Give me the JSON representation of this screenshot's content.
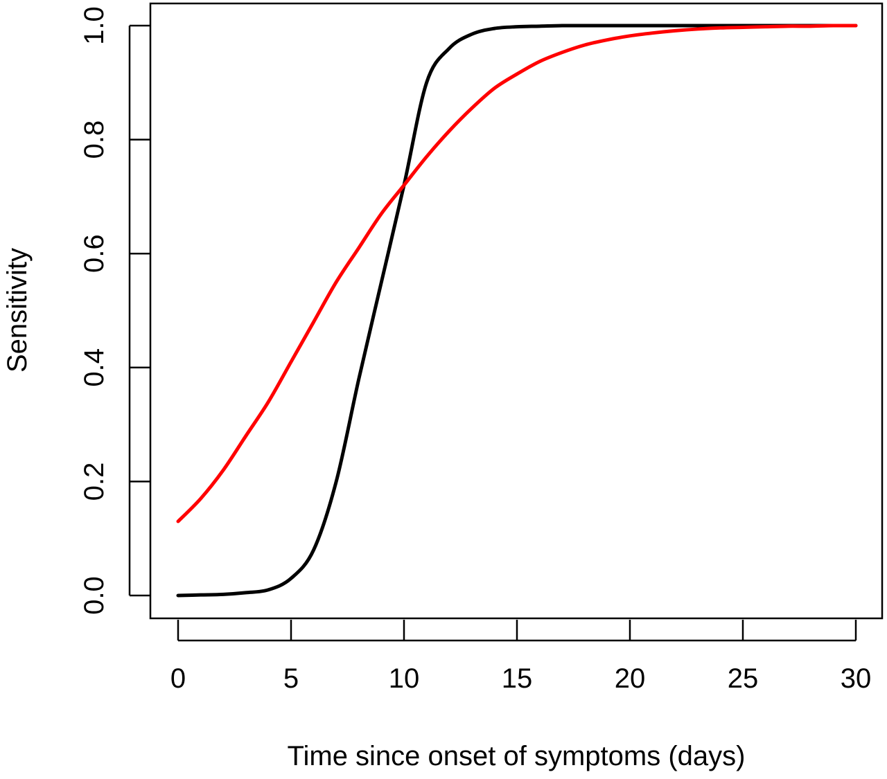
{
  "chart_data": {
    "type": "line",
    "title": "",
    "xlabel": "Time since onset of symptoms (days)",
    "ylabel": "Sensitivity",
    "xlim": [
      0,
      30
    ],
    "ylim": [
      0,
      1
    ],
    "x_ticks": [
      0,
      5,
      10,
      15,
      20,
      25,
      30
    ],
    "x_tick_labels": [
      "0",
      "5",
      "10",
      "15",
      "20",
      "25",
      "30"
    ],
    "y_ticks": [
      0,
      0.2,
      0.4,
      0.6,
      0.8,
      1.0
    ],
    "y_tick_labels": [
      "0.0",
      "0.2",
      "0.4",
      "0.6",
      "0.8",
      "1.0"
    ],
    "grid": false,
    "legend": "none",
    "series": [
      {
        "color": "#000000",
        "x": [
          0,
          1,
          2,
          3,
          4,
          5,
          6,
          7,
          8,
          9,
          10,
          11,
          12,
          13,
          14,
          15,
          16,
          17,
          18,
          19,
          20,
          21,
          22,
          23,
          24,
          25,
          26,
          27,
          28,
          29,
          30
        ],
        "y": [
          0.0,
          0.001,
          0.002,
          0.005,
          0.01,
          0.03,
          0.08,
          0.2,
          0.38,
          0.55,
          0.72,
          0.9,
          0.96,
          0.985,
          0.995,
          0.998,
          0.999,
          1.0,
          1.0,
          1.0,
          1.0,
          1.0,
          1.0,
          1.0,
          1.0,
          1.0,
          1.0,
          1.0,
          1.0,
          1.0,
          1.0
        ]
      },
      {
        "color": "#ff0000",
        "x": [
          0,
          1,
          2,
          3,
          4,
          5,
          6,
          7,
          8,
          9,
          10,
          11,
          12,
          13,
          14,
          15,
          16,
          17,
          18,
          19,
          20,
          21,
          22,
          23,
          24,
          25,
          26,
          27,
          28,
          29,
          30
        ],
        "y": [
          0.13,
          0.17,
          0.22,
          0.28,
          0.34,
          0.41,
          0.48,
          0.55,
          0.61,
          0.67,
          0.72,
          0.77,
          0.815,
          0.855,
          0.89,
          0.915,
          0.937,
          0.953,
          0.966,
          0.975,
          0.982,
          0.987,
          0.991,
          0.994,
          0.996,
          0.997,
          0.998,
          0.999,
          0.999,
          1.0,
          1.0
        ]
      }
    ]
  }
}
